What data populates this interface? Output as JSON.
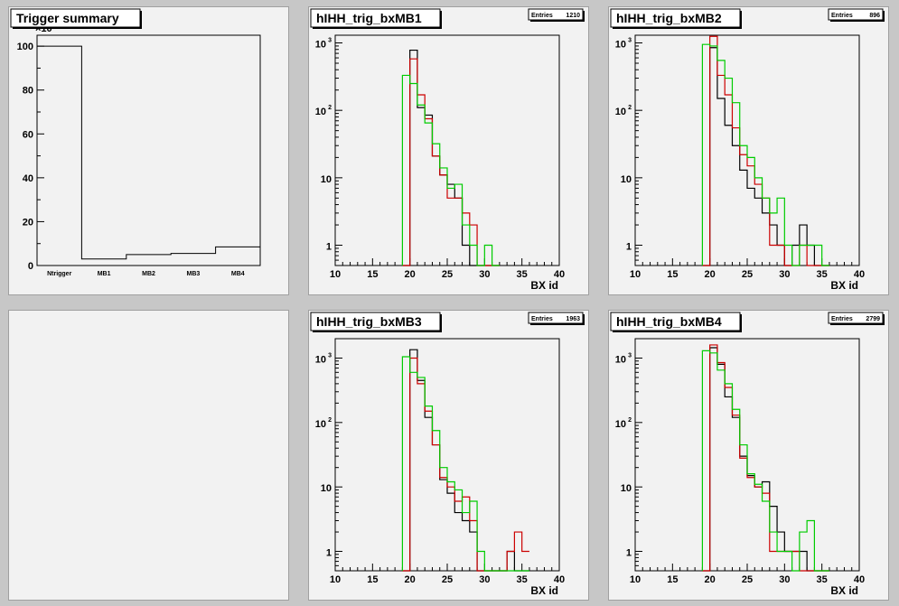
{
  "chart_data": [
    {
      "pad": "p0",
      "type": "bar",
      "title": "Trigger summary",
      "categories": [
        "Ntrigger",
        "MB1",
        "MB2",
        "MB3",
        "MB4"
      ],
      "values": [
        100,
        3,
        5,
        5.5,
        8.5
      ],
      "ylim": [
        0,
        105
      ],
      "yticks": [
        0,
        20,
        40,
        60,
        80,
        100
      ],
      "ymultiplier": "×10",
      "ymultiplier_exp": "3"
    },
    {
      "pad": "p1",
      "type": "line",
      "title": "hIHH_trig_bxMB1",
      "stats_label": "Entries",
      "stats_value": "1210",
      "xlabel": "BX id",
      "xlim": [
        10,
        40
      ],
      "ylog": true,
      "ylim": [
        0.5,
        1300
      ],
      "xticks": [
        10,
        15,
        20,
        25,
        30,
        35,
        40
      ],
      "yticks": [
        {
          "v": 1,
          "t": "1"
        },
        {
          "v": 10,
          "t": "10"
        },
        {
          "v": 100,
          "t": "10",
          "e": "2"
        },
        {
          "v": 1000,
          "t": "10",
          "e": "3"
        }
      ],
      "colors": [
        "#000000",
        "#cc0000",
        "#00cc00"
      ],
      "series": [
        {
          "values": [
            [
              19,
              0.5
            ],
            [
              20,
              780
            ],
            [
              21,
              110
            ],
            [
              22,
              85
            ],
            [
              23,
              21
            ],
            [
              24,
              11
            ],
            [
              25,
              8
            ],
            [
              26,
              5
            ],
            [
              27,
              1
            ],
            [
              28,
              0.5
            ],
            [
              29,
              0.5
            ],
            [
              30,
              0.5
            ],
            [
              31,
              0.5
            ]
          ]
        },
        {
          "values": [
            [
              19,
              0.5
            ],
            [
              20,
              580
            ],
            [
              21,
              170
            ],
            [
              22,
              75
            ],
            [
              23,
              21
            ],
            [
              24,
              11
            ],
            [
              25,
              5
            ],
            [
              26,
              5
            ],
            [
              27,
              3
            ],
            [
              28,
              2
            ],
            [
              29,
              0.5
            ],
            [
              30,
              0.5
            ],
            [
              31,
              0.5
            ]
          ]
        },
        {
          "values": [
            [
              19,
              330
            ],
            [
              20,
              250
            ],
            [
              21,
              120
            ],
            [
              22,
              65
            ],
            [
              23,
              32
            ],
            [
              24,
              14
            ],
            [
              25,
              7
            ],
            [
              26,
              8
            ],
            [
              27,
              2
            ],
            [
              28,
              1
            ],
            [
              29,
              0.5
            ],
            [
              30,
              1
            ],
            [
              31,
              0.5
            ]
          ]
        }
      ]
    },
    {
      "pad": "p2",
      "type": "line",
      "title": "hIHH_trig_bxMB2",
      "stats_label": "Entries",
      "stats_value": "896",
      "xlabel": "BX id",
      "xlim": [
        10,
        40
      ],
      "ylog": true,
      "ylim": [
        0.5,
        1300
      ],
      "xticks": [
        10,
        15,
        20,
        25,
        30,
        35,
        40
      ],
      "yticks": [
        {
          "v": 1,
          "t": "1"
        },
        {
          "v": 10,
          "t": "10"
        },
        {
          "v": 100,
          "t": "10",
          "e": "2"
        },
        {
          "v": 1000,
          "t": "10",
          "e": "3"
        }
      ],
      "colors": [
        "#000000",
        "#cc0000",
        "#00cc00"
      ],
      "series": [
        {
          "values": [
            [
              19,
              0.5
            ],
            [
              20,
              850
            ],
            [
              21,
              150
            ],
            [
              22,
              60
            ],
            [
              23,
              30
            ],
            [
              24,
              13
            ],
            [
              25,
              7
            ],
            [
              26,
              5
            ],
            [
              27,
              3
            ],
            [
              28,
              2
            ],
            [
              29,
              1
            ],
            [
              30,
              0.5
            ],
            [
              31,
              1
            ],
            [
              32,
              2
            ],
            [
              33,
              1
            ],
            [
              34,
              0.5
            ],
            [
              35,
              0.5
            ]
          ]
        },
        {
          "values": [
            [
              19,
              0.5
            ],
            [
              20,
              1250
            ],
            [
              21,
              330
            ],
            [
              22,
              170
            ],
            [
              23,
              55
            ],
            [
              24,
              22
            ],
            [
              25,
              15
            ],
            [
              26,
              8
            ],
            [
              27,
              5
            ],
            [
              28,
              1
            ],
            [
              29,
              1
            ],
            [
              30,
              0.5
            ],
            [
              31,
              0.5
            ],
            [
              32,
              1
            ],
            [
              33,
              0.5
            ],
            [
              34,
              0.5
            ],
            [
              35,
              0.5
            ]
          ]
        },
        {
          "values": [
            [
              19,
              950
            ],
            [
              20,
              900
            ],
            [
              21,
              550
            ],
            [
              22,
              300
            ],
            [
              23,
              130
            ],
            [
              24,
              30
            ],
            [
              25,
              20
            ],
            [
              26,
              10
            ],
            [
              27,
              5
            ],
            [
              28,
              3
            ],
            [
              29,
              5
            ],
            [
              30,
              1
            ],
            [
              31,
              0.5
            ],
            [
              32,
              1
            ],
            [
              33,
              1
            ],
            [
              34,
              1
            ],
            [
              35,
              0.5
            ]
          ]
        }
      ]
    },
    {
      "pad": "p4",
      "type": "line",
      "title": "hIHH_trig_bxMB3",
      "stats_label": "Entries",
      "stats_value": "1963",
      "xlabel": "BX id",
      "xlim": [
        10,
        40
      ],
      "ylog": true,
      "ylim": [
        0.5,
        2000
      ],
      "xticks": [
        10,
        15,
        20,
        25,
        30,
        35,
        40
      ],
      "yticks": [
        {
          "v": 1,
          "t": "1"
        },
        {
          "v": 10,
          "t": "10"
        },
        {
          "v": 100,
          "t": "10",
          "e": "2"
        },
        {
          "v": 1000,
          "t": "10",
          "e": "3"
        }
      ],
      "colors": [
        "#000000",
        "#cc0000",
        "#00cc00"
      ],
      "series": [
        {
          "values": [
            [
              19,
              0.5
            ],
            [
              20,
              1350
            ],
            [
              21,
              450
            ],
            [
              22,
              120
            ],
            [
              23,
              45
            ],
            [
              24,
              13
            ],
            [
              25,
              8
            ],
            [
              26,
              4
            ],
            [
              27,
              3
            ],
            [
              28,
              2
            ],
            [
              29,
              0.5
            ],
            [
              30,
              0.5
            ],
            [
              31,
              0.5
            ],
            [
              32,
              0.5
            ],
            [
              33,
              1
            ],
            [
              34,
              0.5
            ],
            [
              35,
              0.5
            ]
          ]
        },
        {
          "values": [
            [
              19,
              0.5
            ],
            [
              20,
              1000
            ],
            [
              21,
              400
            ],
            [
              22,
              150
            ],
            [
              23,
              45
            ],
            [
              24,
              14
            ],
            [
              25,
              10
            ],
            [
              26,
              6
            ],
            [
              27,
              7
            ],
            [
              28,
              3
            ],
            [
              29,
              0.5
            ],
            [
              30,
              0.5
            ],
            [
              31,
              0.5
            ],
            [
              32,
              0.5
            ],
            [
              33,
              1
            ],
            [
              34,
              2
            ],
            [
              35,
              1
            ]
          ]
        },
        {
          "values": [
            [
              19,
              1050
            ],
            [
              20,
              600
            ],
            [
              21,
              500
            ],
            [
              22,
              180
            ],
            [
              23,
              75
            ],
            [
              24,
              20
            ],
            [
              25,
              12
            ],
            [
              26,
              9
            ],
            [
              27,
              4
            ],
            [
              28,
              6
            ],
            [
              29,
              1
            ],
            [
              30,
              0.5
            ],
            [
              31,
              0.5
            ],
            [
              32,
              0.5
            ],
            [
              33,
              0.5
            ],
            [
              34,
              0.5
            ],
            [
              35,
              0.5
            ]
          ]
        }
      ]
    },
    {
      "pad": "p5",
      "type": "line",
      "title": "hIHH_trig_bxMB4",
      "stats_label": "Entries",
      "stats_value": "2799",
      "xlabel": "BX id",
      "xlim": [
        10,
        40
      ],
      "ylog": true,
      "ylim": [
        0.5,
        2000
      ],
      "xticks": [
        10,
        15,
        20,
        25,
        30,
        35,
        40
      ],
      "yticks": [
        {
          "v": 1,
          "t": "1"
        },
        {
          "v": 10,
          "t": "10"
        },
        {
          "v": 100,
          "t": "10",
          "e": "2"
        },
        {
          "v": 1000,
          "t": "10",
          "e": "3"
        }
      ],
      "colors": [
        "#000000",
        "#cc0000",
        "#00cc00"
      ],
      "series": [
        {
          "values": [
            [
              19,
              0.5
            ],
            [
              20,
              1450
            ],
            [
              21,
              800
            ],
            [
              22,
              250
            ],
            [
              23,
              120
            ],
            [
              24,
              30
            ],
            [
              25,
              15
            ],
            [
              26,
              10
            ],
            [
              27,
              12
            ],
            [
              28,
              5
            ],
            [
              29,
              2
            ],
            [
              30,
              1
            ],
            [
              31,
              1
            ],
            [
              32,
              1
            ],
            [
              33,
              0.5
            ],
            [
              34,
              0.5
            ],
            [
              35,
              0.5
            ]
          ]
        },
        {
          "values": [
            [
              19,
              0.5
            ],
            [
              20,
              1600
            ],
            [
              21,
              850
            ],
            [
              22,
              350
            ],
            [
              23,
              130
            ],
            [
              24,
              28
            ],
            [
              25,
              14
            ],
            [
              26,
              10
            ],
            [
              27,
              8
            ],
            [
              28,
              1
            ],
            [
              29,
              1
            ],
            [
              30,
              1
            ],
            [
              31,
              1
            ],
            [
              32,
              0.5
            ],
            [
              33,
              0.5
            ],
            [
              34,
              0.5
            ],
            [
              35,
              0.5
            ]
          ]
        },
        {
          "values": [
            [
              19,
              1300
            ],
            [
              20,
              1200
            ],
            [
              21,
              650
            ],
            [
              22,
              400
            ],
            [
              23,
              160
            ],
            [
              24,
              45
            ],
            [
              25,
              16
            ],
            [
              26,
              11
            ],
            [
              27,
              6
            ],
            [
              28,
              2
            ],
            [
              29,
              1
            ],
            [
              30,
              1
            ],
            [
              31,
              0.5
            ],
            [
              32,
              2
            ],
            [
              33,
              3
            ],
            [
              34,
              0.5
            ],
            [
              35,
              0.5
            ]
          ]
        }
      ]
    }
  ]
}
